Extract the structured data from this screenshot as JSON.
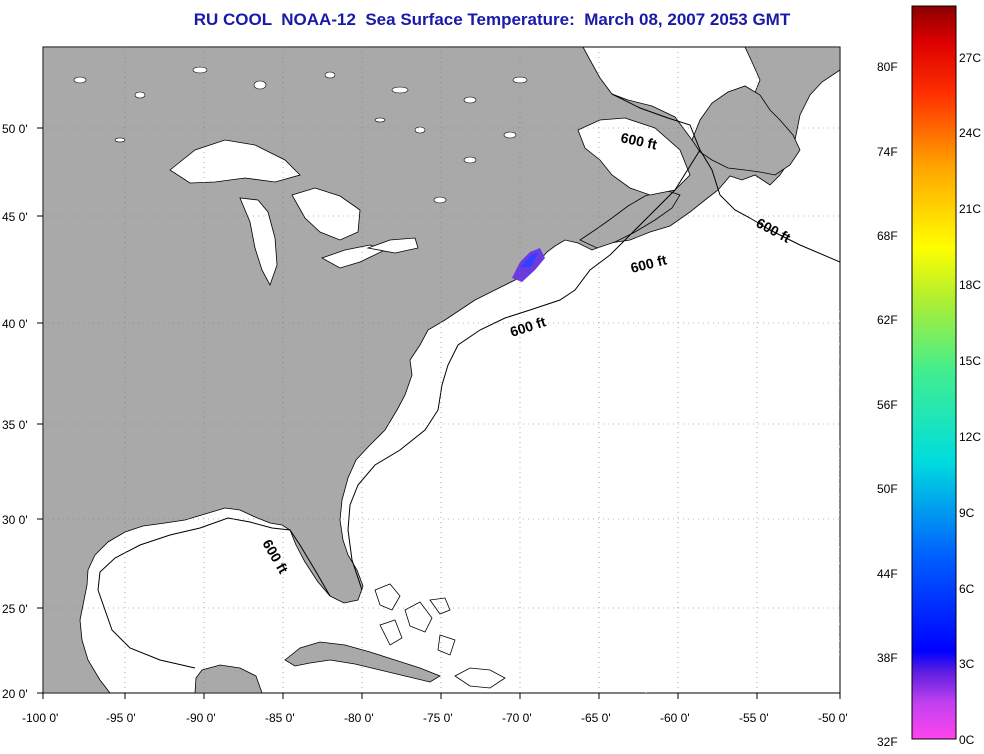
{
  "title": "RU COOL  NOAA-12  Sea Surface Temperature:  March 08, 2007 2053 GMT",
  "map": {
    "lon_ticks": [
      "-100 0'",
      "-95 0'",
      "-90 0'",
      "-85 0'",
      "-80 0'",
      "-75 0'",
      "-70 0'",
      "-65 0'",
      "-60 0'",
      "-55 0'",
      "-50 0'"
    ],
    "lat_ticks": [
      "50 0'",
      "45 0'",
      "40 0'",
      "35 0'",
      "30 0'",
      "25 0'",
      "20 0'"
    ],
    "contour_label": "600 ft",
    "colors": {
      "land": "#a9a9a9",
      "ocean": "#ffffff",
      "grid": "#888888"
    }
  },
  "colorbar": {
    "fahrenheit_labels": [
      "80F",
      "74F",
      "68F",
      "62F",
      "56F",
      "50F",
      "44F",
      "38F",
      "32F"
    ],
    "celsius_labels": [
      "27C",
      "24C",
      "21C",
      "18C",
      "15C",
      "12C",
      "9C",
      "6C",
      "3C",
      "0C"
    ],
    "scale_min_c": 0,
    "scale_max_c": 28
  }
}
